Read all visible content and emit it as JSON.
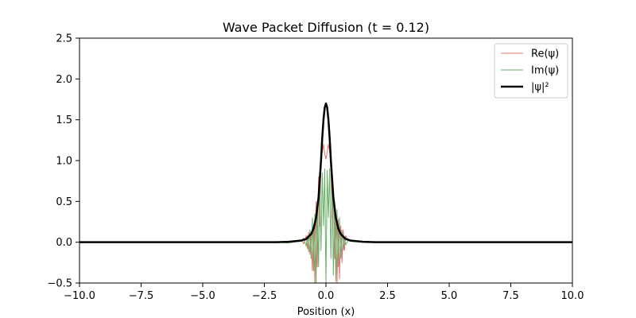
{
  "chart_data": {
    "type": "line",
    "title": "Wave Packet Diffusion (t = 0.12)",
    "xlabel": "Position (x)",
    "ylabel": "",
    "xlim": [
      -10,
      10
    ],
    "ylim": [
      -0.5,
      2.5
    ],
    "x_ticks": [
      "−10.0",
      "−7.5",
      "−5.0",
      "−2.5",
      "0.0",
      "2.5",
      "5.0",
      "7.5",
      "10.0"
    ],
    "x_tick_values": [
      -10,
      -7.5,
      -5,
      -2.5,
      0,
      2.5,
      5,
      7.5,
      10
    ],
    "y_ticks": [
      "−0.5",
      "0.0",
      "0.5",
      "1.0",
      "1.5",
      "2.0",
      "2.5"
    ],
    "y_tick_values": [
      -0.5,
      0,
      0.5,
      1.0,
      1.5,
      2.0,
      2.5
    ],
    "grid": false,
    "legend_position": "top-right",
    "series": [
      {
        "name": "Re(ψ)",
        "color": "#e8716e",
        "linewidth": 1,
        "x": [
          -2.0,
          -1.5,
          -1.0,
          -0.9,
          -0.8,
          -0.75,
          -0.7,
          -0.65,
          -0.6,
          -0.55,
          -0.5,
          -0.45,
          -0.4,
          -0.35,
          -0.3,
          -0.25,
          -0.2,
          -0.15,
          -0.1,
          -0.05,
          0.0,
          0.05,
          0.1,
          0.15,
          0.2,
          0.25,
          0.3,
          0.35,
          0.4,
          0.45,
          0.5,
          0.55,
          0.6,
          0.65,
          0.7,
          0.75,
          0.8,
          0.9,
          1.0,
          1.5,
          2.0
        ],
        "y": [
          0.0,
          0.01,
          0.03,
          -0.02,
          0.08,
          -0.08,
          0.12,
          -0.15,
          0.1,
          -0.35,
          0.2,
          -0.5,
          0.5,
          -0.3,
          0.8,
          0.2,
          1.05,
          1.1,
          1.2,
          1.08,
          1.02,
          1.1,
          1.2,
          1.12,
          0.95,
          0.3,
          0.6,
          -0.2,
          0.3,
          -0.5,
          0.28,
          -0.45,
          0.2,
          -0.25,
          0.15,
          -0.1,
          0.08,
          0.03,
          0.02,
          0.0,
          0.0
        ]
      },
      {
        "name": "Im(ψ)",
        "color": "#6ab06a",
        "linewidth": 1,
        "x": [
          -2.0,
          -1.5,
          -1.0,
          -0.9,
          -0.8,
          -0.75,
          -0.7,
          -0.65,
          -0.6,
          -0.55,
          -0.5,
          -0.45,
          -0.4,
          -0.35,
          -0.3,
          -0.25,
          -0.2,
          -0.15,
          -0.1,
          -0.05,
          0.0,
          0.05,
          0.1,
          0.15,
          0.2,
          0.25,
          0.3,
          0.35,
          0.4,
          0.45,
          0.5,
          0.55,
          0.6,
          0.65,
          0.7,
          0.75,
          0.8,
          0.9,
          1.0,
          1.5,
          2.0
        ],
        "y": [
          0.0,
          -0.01,
          0.02,
          0.05,
          -0.05,
          0.08,
          -0.12,
          0.15,
          -0.2,
          0.3,
          -0.35,
          0.35,
          -0.5,
          0.45,
          -0.3,
          0.7,
          -0.1,
          0.85,
          0.2,
          0.9,
          -0.5,
          0.88,
          0.3,
          0.9,
          -0.2,
          0.75,
          -0.4,
          0.5,
          -0.48,
          0.4,
          -0.3,
          0.3,
          -0.2,
          0.15,
          -0.1,
          0.06,
          -0.03,
          0.02,
          0.01,
          0.0,
          0.0
        ]
      },
      {
        "name": "|ψ|²",
        "color": "#000000",
        "linewidth": 2.5,
        "x": [
          -10,
          -2.0,
          -1.5,
          -1.0,
          -0.8,
          -0.6,
          -0.5,
          -0.4,
          -0.3,
          -0.2,
          -0.15,
          -0.1,
          -0.05,
          0.0,
          0.05,
          0.1,
          0.15,
          0.2,
          0.3,
          0.4,
          0.5,
          0.6,
          0.8,
          1.0,
          1.5,
          2.0,
          10
        ],
        "y": [
          0.0,
          0.0,
          0.005,
          0.02,
          0.04,
          0.1,
          0.17,
          0.3,
          0.55,
          1.0,
          1.28,
          1.5,
          1.65,
          1.7,
          1.65,
          1.5,
          1.28,
          1.0,
          0.55,
          0.3,
          0.17,
          0.1,
          0.04,
          0.02,
          0.005,
          0.0,
          0.0
        ]
      }
    ]
  }
}
